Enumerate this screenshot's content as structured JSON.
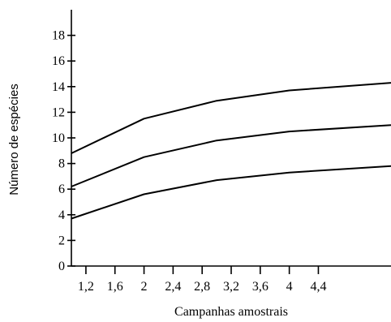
{
  "chart_data": {
    "type": "line",
    "title": "",
    "xlabel": "Campanhas amostrais",
    "ylabel": "Número de espécies",
    "xlim": [
      1,
      5.4
    ],
    "ylim": [
      0,
      20
    ],
    "grid": false,
    "x_ticks": [
      1.2,
      1.6,
      2,
      2.4,
      2.8,
      3.2,
      3.6,
      4,
      4.4
    ],
    "x_tick_labels": [
      "1,2",
      "1,6",
      "2",
      "2,4",
      "2,8",
      "3,2",
      "3,6",
      "4",
      "4,4"
    ],
    "y_ticks": [
      0,
      2,
      4,
      6,
      8,
      10,
      12,
      14,
      16,
      18
    ],
    "y_tick_labels": [
      "0",
      "2",
      "4",
      "6",
      "8",
      "10",
      "12",
      "14",
      "16",
      "18"
    ],
    "series": [
      {
        "x": [
          1,
          2,
          3,
          4,
          5.4
        ],
        "values": [
          8.8,
          11.5,
          12.9,
          13.7,
          14.3
        ]
      },
      {
        "x": [
          1,
          2,
          3,
          4,
          5.4
        ],
        "values": [
          6.2,
          8.5,
          9.8,
          10.5,
          11.0
        ]
      },
      {
        "x": [
          1,
          2,
          3,
          4,
          5.4
        ],
        "values": [
          3.7,
          5.6,
          6.7,
          7.3,
          7.8
        ]
      }
    ]
  }
}
